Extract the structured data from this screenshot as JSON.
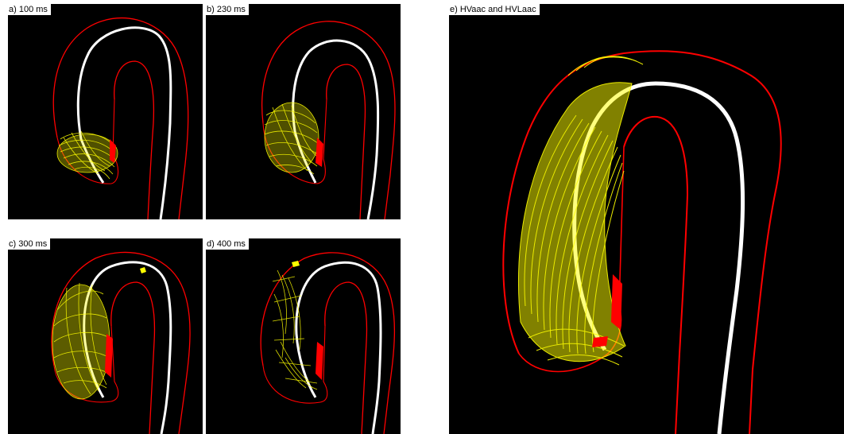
{
  "panels": {
    "a": {
      "label": "a) 100 ms"
    },
    "b": {
      "label": "b) 230 ms"
    },
    "c": {
      "label": "c) 300 ms"
    },
    "d": {
      "label": "d) 400 ms"
    },
    "e": {
      "label": "e) HVaac and HVLaac"
    }
  },
  "colors": {
    "background": "#000000",
    "vessel_wall": "#ff0000",
    "centerline": "#ffffff",
    "streamlines": "#ffff00"
  }
}
